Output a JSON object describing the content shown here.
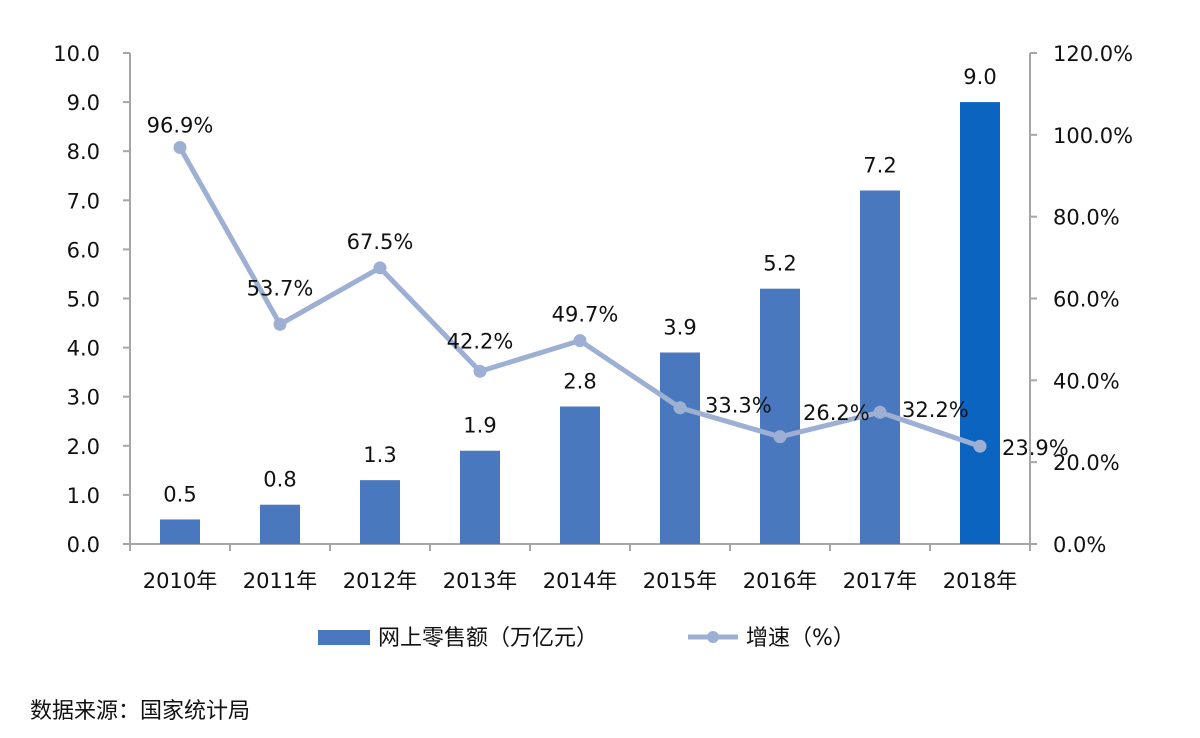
{
  "chart_data": {
    "type": "bar",
    "categories": [
      "2010年",
      "2011年",
      "2012年",
      "2013年",
      "2014年",
      "2015年",
      "2016年",
      "2017年",
      "2018年"
    ],
    "series": [
      {
        "name": "网上零售额（万亿元）",
        "type": "bar",
        "axis": "left",
        "values": [
          0.5,
          0.8,
          1.3,
          1.9,
          2.8,
          3.9,
          5.2,
          7.2,
          9.0
        ],
        "labels": [
          "0.5",
          "0.8",
          "1.3",
          "1.9",
          "2.8",
          "3.9",
          "5.2",
          "7.2",
          "9.0"
        ],
        "color": "#4a78be",
        "highlight_color": "#0b64bf"
      },
      {
        "name": "增速（%）",
        "type": "line",
        "axis": "right",
        "values": [
          96.9,
          53.7,
          67.5,
          42.2,
          49.7,
          33.3,
          26.2,
          32.2,
          23.9
        ],
        "labels": [
          "96.9%",
          "53.7%",
          "67.5%",
          "42.2%",
          "49.7%",
          "33.3%",
          "26.2%",
          "32.2%",
          "23.9%"
        ],
        "color": "#9db0d3"
      }
    ],
    "y_left": {
      "range": [
        0,
        10
      ],
      "ticks": [
        "0.0",
        "1.0",
        "2.0",
        "3.0",
        "4.0",
        "5.0",
        "6.0",
        "7.0",
        "8.0",
        "9.0",
        "10.0"
      ]
    },
    "y_right": {
      "range": [
        0,
        120
      ],
      "ticks": [
        "0.0%",
        "20.0%",
        "40.0%",
        "60.0%",
        "80.0%",
        "100.0%",
        "120.0%"
      ]
    },
    "grid": false,
    "legend_position": "bottom"
  },
  "source_note": "数据来源：国家统计局"
}
